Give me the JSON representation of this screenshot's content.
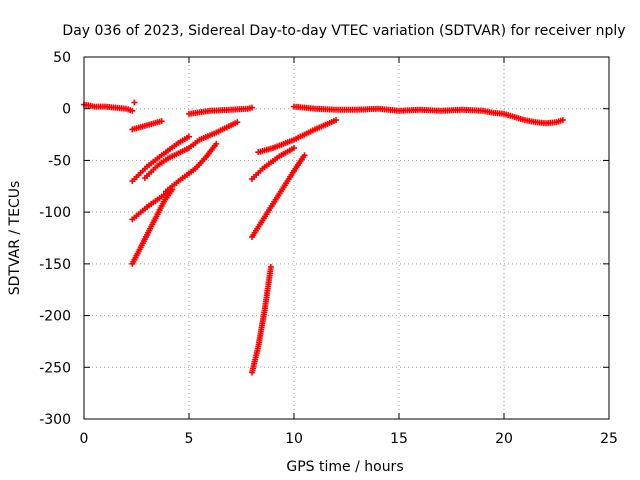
{
  "chart_data": {
    "type": "scatter",
    "title": "Day 036 of 2023, Sidereal Day-to-day VTEC variation (SDTVAR) for receiver nply",
    "xlabel": "GPS time / hours",
    "ylabel": "SDTVAR / TECUs",
    "xlim": [
      0,
      25
    ],
    "ylim": [
      -300,
      50
    ],
    "xticks": [
      0,
      5,
      10,
      15,
      20,
      25
    ],
    "yticks": [
      50,
      0,
      -50,
      -100,
      -150,
      -200,
      -250,
      -300
    ],
    "grid": true,
    "marker": "+",
    "color": "#ff0000",
    "segments": [
      [
        [
          0.0,
          4
        ],
        [
          0.5,
          2
        ],
        [
          1.0,
          2
        ],
        [
          1.5,
          1
        ],
        [
          2.0,
          0
        ],
        [
          2.3,
          -2
        ]
      ],
      [
        [
          2.4,
          6
        ]
      ],
      [
        [
          2.3,
          -20
        ],
        [
          3.0,
          -16
        ],
        [
          3.7,
          -12
        ]
      ],
      [
        [
          2.3,
          -70
        ],
        [
          3.0,
          -56
        ],
        [
          3.7,
          -45
        ],
        [
          4.5,
          -33
        ],
        [
          5.0,
          -27
        ]
      ],
      [
        [
          2.3,
          -107
        ],
        [
          3.0,
          -95
        ],
        [
          3.7,
          -85
        ],
        [
          4.2,
          -78
        ]
      ],
      [
        [
          2.3,
          -150
        ],
        [
          2.8,
          -130
        ],
        [
          3.3,
          -110
        ],
        [
          3.8,
          -90
        ],
        [
          4.2,
          -78
        ]
      ],
      [
        [
          2.9,
          -67
        ],
        [
          3.5,
          -55
        ],
        [
          4.0,
          -48
        ],
        [
          5.0,
          -38
        ],
        [
          5.5,
          -30
        ],
        [
          6.2,
          -24
        ],
        [
          7.3,
          -13
        ]
      ],
      [
        [
          3.9,
          -80
        ],
        [
          4.5,
          -70
        ],
        [
          5.3,
          -58
        ],
        [
          5.8,
          -47
        ],
        [
          6.3,
          -34
        ]
      ],
      [
        [
          5.0,
          -5
        ],
        [
          6.0,
          -2
        ],
        [
          7.0,
          -1
        ],
        [
          7.8,
          0
        ],
        [
          8.0,
          1
        ]
      ],
      [
        [
          8.0,
          -68
        ],
        [
          8.5,
          -58
        ],
        [
          9.3,
          -46
        ],
        [
          10.0,
          -38
        ]
      ],
      [
        [
          8.3,
          -42
        ],
        [
          9.0,
          -38
        ],
        [
          10.0,
          -30
        ],
        [
          11.0,
          -20
        ],
        [
          12.0,
          -11
        ]
      ],
      [
        [
          8.0,
          -124
        ],
        [
          8.5,
          -108
        ],
        [
          9.0,
          -92
        ],
        [
          9.5,
          -76
        ],
        [
          10.0,
          -60
        ],
        [
          10.5,
          -45
        ]
      ],
      [
        [
          8.0,
          -255
        ],
        [
          8.3,
          -230
        ],
        [
          8.6,
          -195
        ],
        [
          8.9,
          -153
        ]
      ],
      [
        [
          10.0,
          2
        ],
        [
          11.0,
          0
        ],
        [
          12.0,
          -1
        ],
        [
          13.0,
          -1
        ],
        [
          14.0,
          0
        ],
        [
          15.0,
          -2
        ],
        [
          16.0,
          -1
        ],
        [
          17.0,
          -2
        ],
        [
          18.0,
          -1
        ],
        [
          19.0,
          -2
        ],
        [
          19.5,
          -4
        ],
        [
          20.0,
          -5
        ],
        [
          20.5,
          -8
        ],
        [
          21.0,
          -11
        ],
        [
          21.5,
          -13
        ],
        [
          22.0,
          -14
        ],
        [
          22.5,
          -13
        ],
        [
          22.8,
          -11
        ]
      ]
    ]
  }
}
